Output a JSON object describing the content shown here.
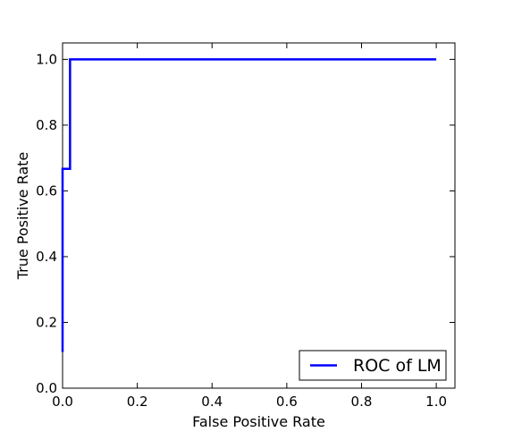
{
  "chart_data": {
    "type": "line",
    "title": "",
    "xlabel": "False Positive Rate",
    "ylabel": "True Positive Rate",
    "xlim": [
      0.0,
      1.05
    ],
    "ylim": [
      0.0,
      1.05
    ],
    "xticks": [
      "0.0",
      "0.2",
      "0.4",
      "0.6",
      "0.8",
      "1.0"
    ],
    "yticks": [
      "0.0",
      "0.2",
      "0.4",
      "0.6",
      "0.8",
      "1.0"
    ],
    "grid": false,
    "legend_position": "lower-right",
    "series": [
      {
        "name": "ROC of LM",
        "color": "#0000ff",
        "x": [
          0.0,
          0.0,
          0.0,
          0.02,
          0.02,
          1.0
        ],
        "y": [
          0.11,
          0.667,
          0.667,
          0.667,
          1.0,
          1.0
        ]
      }
    ]
  }
}
